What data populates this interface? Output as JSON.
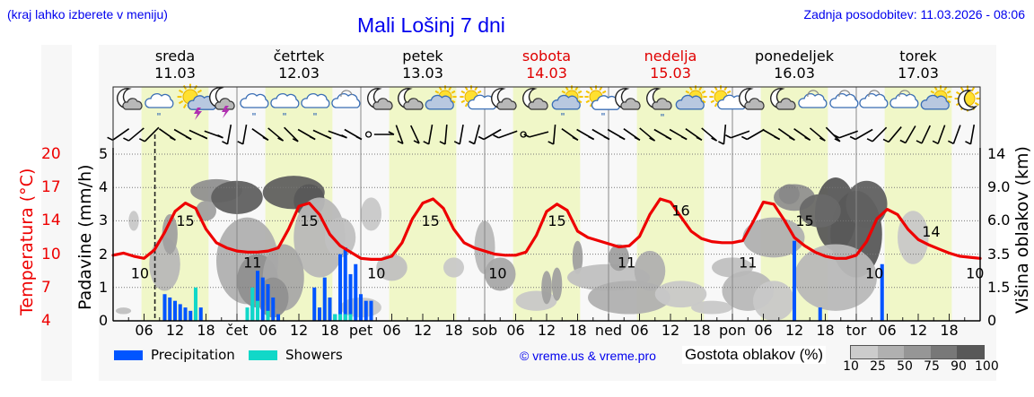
{
  "header": {
    "hint": "(kraj lahko izberete v meniju)",
    "title": "Mali Lošinj 7 dni",
    "updated": "Zadnja posodobitev: 11.03.2026 - 08:06"
  },
  "days": [
    {
      "name": "sreda",
      "date": "11.03",
      "weekend": false
    },
    {
      "name": "četrtek",
      "date": "12.03",
      "weekend": false
    },
    {
      "name": "petek",
      "date": "13.03",
      "weekend": false
    },
    {
      "name": "sobota",
      "date": "14.03",
      "weekend": true
    },
    {
      "name": "nedelja",
      "date": "15.03",
      "weekend": true
    },
    {
      "name": "ponedeljek",
      "date": "16.03",
      "weekend": false
    },
    {
      "name": "torek",
      "date": "17.03",
      "weekend": false
    }
  ],
  "axes": {
    "temp_label": "Temperatura (°C)",
    "precip_label": "Padavine (mm/h)",
    "cloud_label": "Višina oblakov (km)",
    "temp_ticks": [
      "20",
      "17",
      "14",
      "10",
      "7",
      "4"
    ],
    "precip_ticks": [
      "5",
      "4",
      "3",
      "2",
      "1",
      "0"
    ],
    "cloud_ticks": [
      "14",
      "9.0",
      "6.0",
      "3.5",
      "1.5",
      "0"
    ],
    "x_ticks": [
      "06",
      "12",
      "18",
      "čet",
      "06",
      "12",
      "18",
      "pet",
      "06",
      "12",
      "18",
      "sob",
      "06",
      "12",
      "18",
      "ned",
      "06",
      "12",
      "18",
      "pon",
      "06",
      "12",
      "18",
      "tor",
      "06",
      "12",
      "18"
    ]
  },
  "legend": {
    "precipitation": "Precipitation",
    "showers": "Showers",
    "credit": "© vreme.us & vreme.pro",
    "density_title": "Gostota oblakov (%)",
    "density_ticks": [
      "10",
      "25",
      "50",
      "75",
      "90",
      "100"
    ]
  },
  "colors": {
    "precipitation": "#0055ff",
    "showers": "#11d8c8",
    "temperature": "#ee0000",
    "day_shade": "#f0f7c8",
    "title": "#0000ee",
    "density": [
      "#cccccc",
      "#b0b0b0",
      "#969696",
      "#787878",
      "#585858"
    ]
  },
  "chart_data": {
    "type": "line",
    "title": "Mali Lošinj 7 dni",
    "xlabel": "",
    "ylabel": "Padavine (mm/h)",
    "ylim": [
      0,
      5
    ],
    "temp_ylim": [
      4,
      20
    ],
    "grid": true,
    "x_range_hours": [
      0,
      168
    ],
    "current_time_hour": 8.1,
    "series": [
      {
        "name": "Temperatura (°C)",
        "type": "line",
        "hours": [
          0,
          2,
          4,
          6,
          8,
          10,
          12,
          14,
          16,
          18,
          20,
          22,
          24,
          26,
          28,
          30,
          32,
          34,
          36,
          38,
          40,
          42,
          44,
          46,
          48,
          50,
          52,
          54,
          56,
          58,
          60,
          62,
          64,
          66,
          68,
          70,
          72,
          74,
          76,
          78,
          80,
          82,
          84,
          86,
          88,
          90,
          92,
          94,
          96,
          98,
          100,
          102,
          104,
          106,
          108,
          110,
          112,
          114,
          116,
          118,
          120,
          122,
          124,
          126,
          128,
          130,
          132,
          134,
          136,
          138,
          140,
          142,
          144,
          146,
          148,
          150,
          152,
          154,
          156,
          158,
          160,
          162,
          164,
          166,
          168
        ],
        "values": [
          10.3,
          10.5,
          10.2,
          10.0,
          10.8,
          12.5,
          14.5,
          15.3,
          14.8,
          12.8,
          11.5,
          11.0,
          10.7,
          10.6,
          10.6,
          10.7,
          11.0,
          12.8,
          15.0,
          15.3,
          14.2,
          12.3,
          11.2,
          10.6,
          10.0,
          9.9,
          9.9,
          10.2,
          11.5,
          13.8,
          15.3,
          15.7,
          14.8,
          12.8,
          11.5,
          11.0,
          10.7,
          10.4,
          10.3,
          10.3,
          10.6,
          12.2,
          14.5,
          15.2,
          14.6,
          12.6,
          12.0,
          11.7,
          11.4,
          11.1,
          11.2,
          12.1,
          14.2,
          15.7,
          15.4,
          14.0,
          12.6,
          11.9,
          11.6,
          11.5,
          11.5,
          11.7,
          13.5,
          15.4,
          15.2,
          13.7,
          12.0,
          11.2,
          10.6,
          10.2,
          10.0,
          10.0,
          10.3,
          11.6,
          13.8,
          14.7,
          14.2,
          12.8,
          11.8,
          11.3,
          10.9,
          10.5,
          10.2,
          10.1,
          10.0
        ]
      },
      {
        "name": "Precipitation",
        "type": "bar",
        "hours": [
          10,
          11,
          12,
          13,
          14,
          15,
          17,
          27,
          28,
          29,
          30,
          31,
          32,
          39,
          40,
          41,
          42,
          43,
          44,
          45,
          46,
          47,
          48,
          49,
          50,
          132,
          137,
          149
        ],
        "values": [
          0.8,
          0.7,
          0.6,
          0.5,
          0.4,
          0.3,
          0.4,
          0.5,
          1.5,
          1.3,
          1.1,
          0.7,
          0.2,
          1.0,
          0.4,
          1.3,
          0.7,
          0.2,
          2.0,
          2.2,
          1.4,
          1.7,
          0.8,
          0.6,
          0.6,
          2.4,
          0.4,
          1.7
        ]
      },
      {
        "name": "Showers",
        "type": "bar",
        "hours": [
          16,
          26,
          27,
          28,
          30,
          43,
          44,
          45,
          46
        ],
        "values": [
          1.0,
          0.4,
          1.0,
          0.6,
          0.3,
          0.2,
          0.2,
          0.2,
          0.2
        ]
      }
    ],
    "temp_labels": [
      {
        "hour": 5,
        "value": 10
      },
      {
        "hour": 14,
        "value": 15
      },
      {
        "hour": 27,
        "value": 11
      },
      {
        "hour": 38,
        "value": 15
      },
      {
        "hour": 29.5,
        "value": 10,
        "day": 3
      },
      {
        "hour": 62,
        "value": 15
      },
      {
        "hour": 76,
        "value": 10
      },
      {
        "hour": 86,
        "value": 15
      },
      {
        "hour": 100,
        "value": 11
      },
      {
        "hour": 110,
        "value": 16
      },
      {
        "hour": 123,
        "value": 11
      },
      {
        "hour": 134,
        "value": 15
      },
      {
        "hour": 148,
        "value": 10
      },
      {
        "hour": 159,
        "value": 14
      },
      {
        "hour": 167,
        "value": 10
      }
    ],
    "cloud_height_axis": [
      "0",
      "1.5",
      "3.5",
      "6.0",
      "9.0",
      "14"
    ],
    "cloud_density_legend": [
      "10",
      "25",
      "50",
      "75",
      "90",
      "100"
    ]
  }
}
